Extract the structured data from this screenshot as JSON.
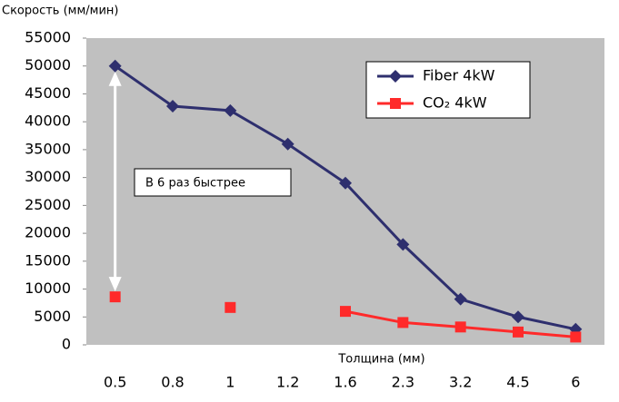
{
  "chart_data": {
    "type": "line",
    "y_axis_label": "Скорость (мм/мин)",
    "x_axis_label": "Толщина (мм)",
    "annotation": "В 6 раз быстрее",
    "categories": [
      "0.5",
      "0.8",
      "1",
      "1.2",
      "1.6",
      "2.3",
      "3.2",
      "4.5",
      "6"
    ],
    "series": [
      {
        "name": "Fiber 4kW",
        "color": "#2e2f6e",
        "marker": "diamond",
        "values": [
          50000,
          42800,
          42000,
          36000,
          29000,
          18000,
          8200,
          5000,
          2800
        ]
      },
      {
        "name": "CO₂ 4kW",
        "color": "#ff2a2a",
        "marker": "square",
        "values": [
          8600,
          null,
          6700,
          null,
          6000,
          4000,
          3200,
          2300,
          1400
        ]
      }
    ],
    "ylim": [
      0,
      55000
    ],
    "yticks": [
      0,
      5000,
      10000,
      15000,
      20000,
      25000,
      30000,
      35000,
      40000,
      45000,
      50000,
      55000
    ],
    "grid": false,
    "legend": "upper right"
  }
}
